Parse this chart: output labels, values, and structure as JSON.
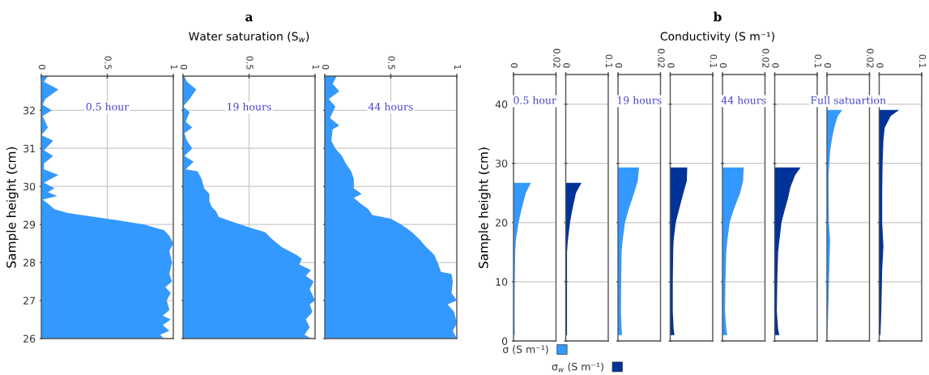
{
  "chart_data": [
    {
      "type": "other",
      "title": "a",
      "subtitle": "Water saturation (S$_{w}$)"
    },
    {
      "type": "area",
      "orientation": "horizontal",
      "ylabel": "Sample height (cm)",
      "annotations": [
        "0.5 hour"
      ],
      "ylim": [
        26,
        32.9
      ],
      "yticks": [
        26,
        27,
        28,
        29,
        30,
        31,
        32
      ],
      "xlim": [
        0,
        1
      ],
      "xticks": [
        0,
        0.5,
        1
      ],
      "grid": true,
      "series": [
        {
          "color": "#3399ff",
          "x": [
            26.0,
            26.1,
            26.2,
            26.35,
            26.5,
            26.6,
            26.75,
            27.0,
            27.2,
            27.35,
            27.5,
            27.7,
            28.0,
            28.3,
            28.5,
            28.7,
            28.85,
            29.0,
            29.1,
            29.2,
            29.3,
            29.4,
            29.55,
            29.65,
            29.75,
            29.85,
            29.95,
            30.1,
            30.3,
            30.45,
            30.6,
            30.8,
            30.95,
            31.2,
            31.35,
            31.55,
            31.7,
            31.85,
            32.0,
            32.15,
            32.3,
            32.55,
            32.75,
            32.9
          ],
          "values": [
            0.93,
            0.9,
            0.97,
            0.92,
            0.98,
            0.92,
            0.97,
            0.95,
            0.98,
            0.94,
            0.99,
            0.97,
            0.99,
            0.97,
            1.0,
            0.97,
            0.93,
            0.78,
            0.6,
            0.4,
            0.2,
            0.1,
            0.05,
            0.01,
            0.12,
            0.05,
            0.1,
            0.02,
            0.13,
            0.02,
            0.02,
            0.09,
            0.02,
            0.09,
            0.0,
            0.05,
            0.03,
            0.01,
            0.08,
            0.01,
            0.03,
            0.13,
            0.02,
            0.05
          ]
        }
      ]
    },
    {
      "type": "area",
      "orientation": "horizontal",
      "annotations": [
        "19 hours"
      ],
      "ylim": [
        26,
        32.9
      ],
      "yticks": [
        26,
        27,
        28,
        29,
        30,
        31,
        32
      ],
      "xlim": [
        0,
        1
      ],
      "xticks": [
        0,
        0.5,
        1
      ],
      "grid": true,
      "tick_labels": "x",
      "series": [
        {
          "color": "#3399ff",
          "x": [
            26.0,
            26.1,
            26.3,
            26.5,
            26.7,
            26.9,
            27.0,
            27.3,
            27.5,
            27.65,
            27.8,
            27.95,
            28.1,
            28.2,
            28.4,
            28.6,
            28.8,
            28.9,
            29.1,
            29.2,
            29.35,
            29.45,
            29.6,
            29.8,
            29.95,
            30.2,
            30.4,
            30.45,
            30.65,
            30.8,
            31.0,
            31.2,
            31.4,
            31.55,
            31.7,
            31.95,
            32.1,
            32.3,
            32.55,
            32.75,
            32.9
          ],
          "values": [
            0.97,
            0.92,
            0.96,
            0.93,
            0.98,
            0.96,
            1.0,
            0.96,
            0.99,
            0.93,
            0.97,
            0.88,
            0.9,
            0.86,
            0.75,
            0.68,
            0.62,
            0.52,
            0.35,
            0.27,
            0.25,
            0.22,
            0.2,
            0.2,
            0.16,
            0.14,
            0.11,
            0.02,
            0.08,
            0.01,
            0.07,
            0.03,
            0.01,
            0.07,
            0.02,
            0.05,
            0.0,
            0.05,
            0.1,
            0.03,
            0.01
          ]
        }
      ]
    },
    {
      "type": "area",
      "orientation": "horizontal",
      "annotations": [
        "44 hours"
      ],
      "ylim": [
        26,
        32.9
      ],
      "yticks": [
        26,
        27,
        28,
        29,
        30,
        31,
        32
      ],
      "xlim": [
        0,
        1
      ],
      "xticks": [
        0,
        0.5,
        1
      ],
      "grid": true,
      "tick_labels": "x",
      "series": [
        {
          "color": "#3399ff",
          "x": [
            26.0,
            26.2,
            26.4,
            26.7,
            26.9,
            27.0,
            27.2,
            27.5,
            27.7,
            27.75,
            27.95,
            28.2,
            28.4,
            28.6,
            28.8,
            29.0,
            29.15,
            29.25,
            29.4,
            29.55,
            29.7,
            29.8,
            29.95,
            30.2,
            30.4,
            30.6,
            30.8,
            31.0,
            31.2,
            31.5,
            31.6,
            31.8,
            32.1,
            32.3,
            32.5,
            32.7,
            32.9
          ],
          "values": [
            1.0,
            0.97,
            1.0,
            0.98,
            0.93,
            1.0,
            0.96,
            0.97,
            0.96,
            0.88,
            0.86,
            0.83,
            0.77,
            0.72,
            0.66,
            0.58,
            0.5,
            0.36,
            0.33,
            0.27,
            0.22,
            0.28,
            0.22,
            0.22,
            0.2,
            0.16,
            0.13,
            0.08,
            0.05,
            0.06,
            0.11,
            0.04,
            0.08,
            0.03,
            0.11,
            0.06,
            0.09
          ]
        }
      ]
    },
    {
      "type": "other",
      "title": "b",
      "subtitle": "Conductivity (S m⁻¹)"
    },
    {
      "type": "area",
      "orientation": "horizontal",
      "ylabel": "Sample height (cm)",
      "annotations": [
        "0.5 hour"
      ],
      "ylim": [
        0,
        45
      ],
      "yticks": [
        0,
        10,
        20,
        30,
        40
      ],
      "xlim": [
        0,
        0.02
      ],
      "xticks": [
        0,
        0.02
      ],
      "grid": true,
      "legend": "bottom",
      "series": [
        {
          "name": "σ (S m⁻¹)",
          "color": "#3399ff",
          "x": [
            1,
            1.5,
            5,
            10,
            15,
            17,
            20,
            22,
            25,
            26.7
          ],
          "values": [
            0.0006,
            0.0006,
            0.0005,
            0.0006,
            0.0008,
            0.0011,
            0.0024,
            0.0036,
            0.0058,
            0.0082
          ]
        }
      ]
    },
    {
      "type": "area",
      "orientation": "horizontal",
      "ylim": [
        0,
        45
      ],
      "yticks": [
        0,
        10,
        20,
        30,
        40
      ],
      "xlim": [
        0,
        0.1
      ],
      "xticks": [
        0,
        0.1
      ],
      "grid": true,
      "tick_labels": "x",
      "legend": "bottom",
      "series": [
        {
          "name": "σ$_{w}$ (S m⁻¹)",
          "color": "#003399",
          "x": [
            1,
            5,
            10,
            15,
            17,
            20,
            22,
            25,
            26.7
          ],
          "values": [
            0.003,
            0.003,
            0.003,
            0.003,
            0.005,
            0.01,
            0.015,
            0.024,
            0.037
          ]
        }
      ]
    },
    {
      "type": "area",
      "orientation": "horizontal",
      "annotations": [
        "19 hours"
      ],
      "ylim": [
        0,
        45
      ],
      "yticks": [
        0,
        10,
        20,
        30,
        40
      ],
      "xlim": [
        0,
        0.02
      ],
      "xticks": [
        0,
        0.02
      ],
      "grid": true,
      "tick_labels": "x",
      "series": [
        {
          "color": "#3399ff",
          "x": [
            1,
            2,
            5,
            10,
            15,
            17,
            20,
            22,
            25,
            27,
            29.3
          ],
          "values": [
            0.0019,
            0.0017,
            0.0014,
            0.0015,
            0.0017,
            0.0022,
            0.0033,
            0.0048,
            0.0076,
            0.0093,
            0.0099
          ]
        }
      ]
    },
    {
      "type": "area",
      "orientation": "horizontal",
      "ylim": [
        0,
        45
      ],
      "yticks": [
        0,
        10,
        20,
        30,
        40
      ],
      "xlim": [
        0,
        0.1
      ],
      "xticks": [
        0,
        0.1
      ],
      "grid": true,
      "tick_labels": "x",
      "series": [
        {
          "color": "#003399",
          "x": [
            1,
            2,
            5,
            10,
            15,
            17,
            20,
            22,
            25,
            27,
            29.3
          ],
          "values": [
            0.01,
            0.008,
            0.006,
            0.006,
            0.007,
            0.008,
            0.013,
            0.02,
            0.031,
            0.039,
            0.04
          ]
        }
      ]
    },
    {
      "type": "area",
      "orientation": "horizontal",
      "annotations": [
        "44 hours"
      ],
      "ylim": [
        0,
        45
      ],
      "yticks": [
        0,
        10,
        20,
        30,
        40
      ],
      "xlim": [
        0,
        0.02
      ],
      "xticks": [
        0,
        0.02
      ],
      "grid": true,
      "tick_labels": "x",
      "series": [
        {
          "color": "#3399ff",
          "x": [
            1,
            2,
            5,
            10,
            15,
            17,
            20,
            22,
            25,
            27,
            29.3
          ],
          "values": [
            0.0023,
            0.0018,
            0.0012,
            0.0014,
            0.0018,
            0.0023,
            0.0034,
            0.0051,
            0.0083,
            0.0097,
            0.01
          ]
        }
      ]
    },
    {
      "type": "area",
      "orientation": "horizontal",
      "ylim": [
        0,
        45
      ],
      "yticks": [
        0,
        10,
        20,
        30,
        40
      ],
      "xlim": [
        0,
        0.1
      ],
      "xticks": [
        0,
        0.1
      ],
      "grid": true,
      "tick_labels": "x",
      "series": [
        {
          "color": "#003399",
          "x": [
            1,
            2,
            5,
            10,
            15,
            17,
            20,
            22,
            24,
            26,
            28,
            29.3
          ],
          "values": [
            0.011,
            0.008,
            0.005,
            0.006,
            0.008,
            0.011,
            0.016,
            0.023,
            0.031,
            0.037,
            0.048,
            0.061
          ]
        }
      ]
    },
    {
      "type": "area",
      "orientation": "horizontal",
      "annotations": [
        "Full satuartion"
      ],
      "ylim": [
        0,
        45
      ],
      "yticks": [
        0,
        10,
        20,
        30,
        40
      ],
      "xlim": [
        0,
        0.02
      ],
      "xticks": [
        0,
        0.02
      ],
      "grid": true,
      "tick_labels": "x",
      "series": [
        {
          "color": "#3399ff",
          "x": [
            1,
            5,
            12,
            17,
            20,
            28,
            30,
            32,
            34,
            36,
            38,
            39
          ],
          "values": [
            0.0002,
            0.0006,
            0.0011,
            0.0015,
            0.0009,
            0.0008,
            0.0011,
            0.0015,
            0.0023,
            0.0034,
            0.0051,
            0.0072
          ]
        }
      ]
    },
    {
      "type": "area",
      "orientation": "horizontal",
      "ylim": [
        0,
        45
      ],
      "yticks": [
        0,
        10,
        20,
        30,
        40
      ],
      "xlim": [
        0,
        0.1
      ],
      "xticks": [
        0,
        0.1
      ],
      "grid": true,
      "tick_labels": "x",
      "series": [
        {
          "color": "#003399",
          "x": [
            1,
            5,
            12,
            16,
            20,
            25,
            30,
            34,
            36,
            38,
            39
          ],
          "values": [
            0.003,
            0.005,
            0.007,
            0.01,
            0.007,
            0.007,
            0.008,
            0.01,
            0.013,
            0.027,
            0.047
          ]
        }
      ]
    }
  ]
}
